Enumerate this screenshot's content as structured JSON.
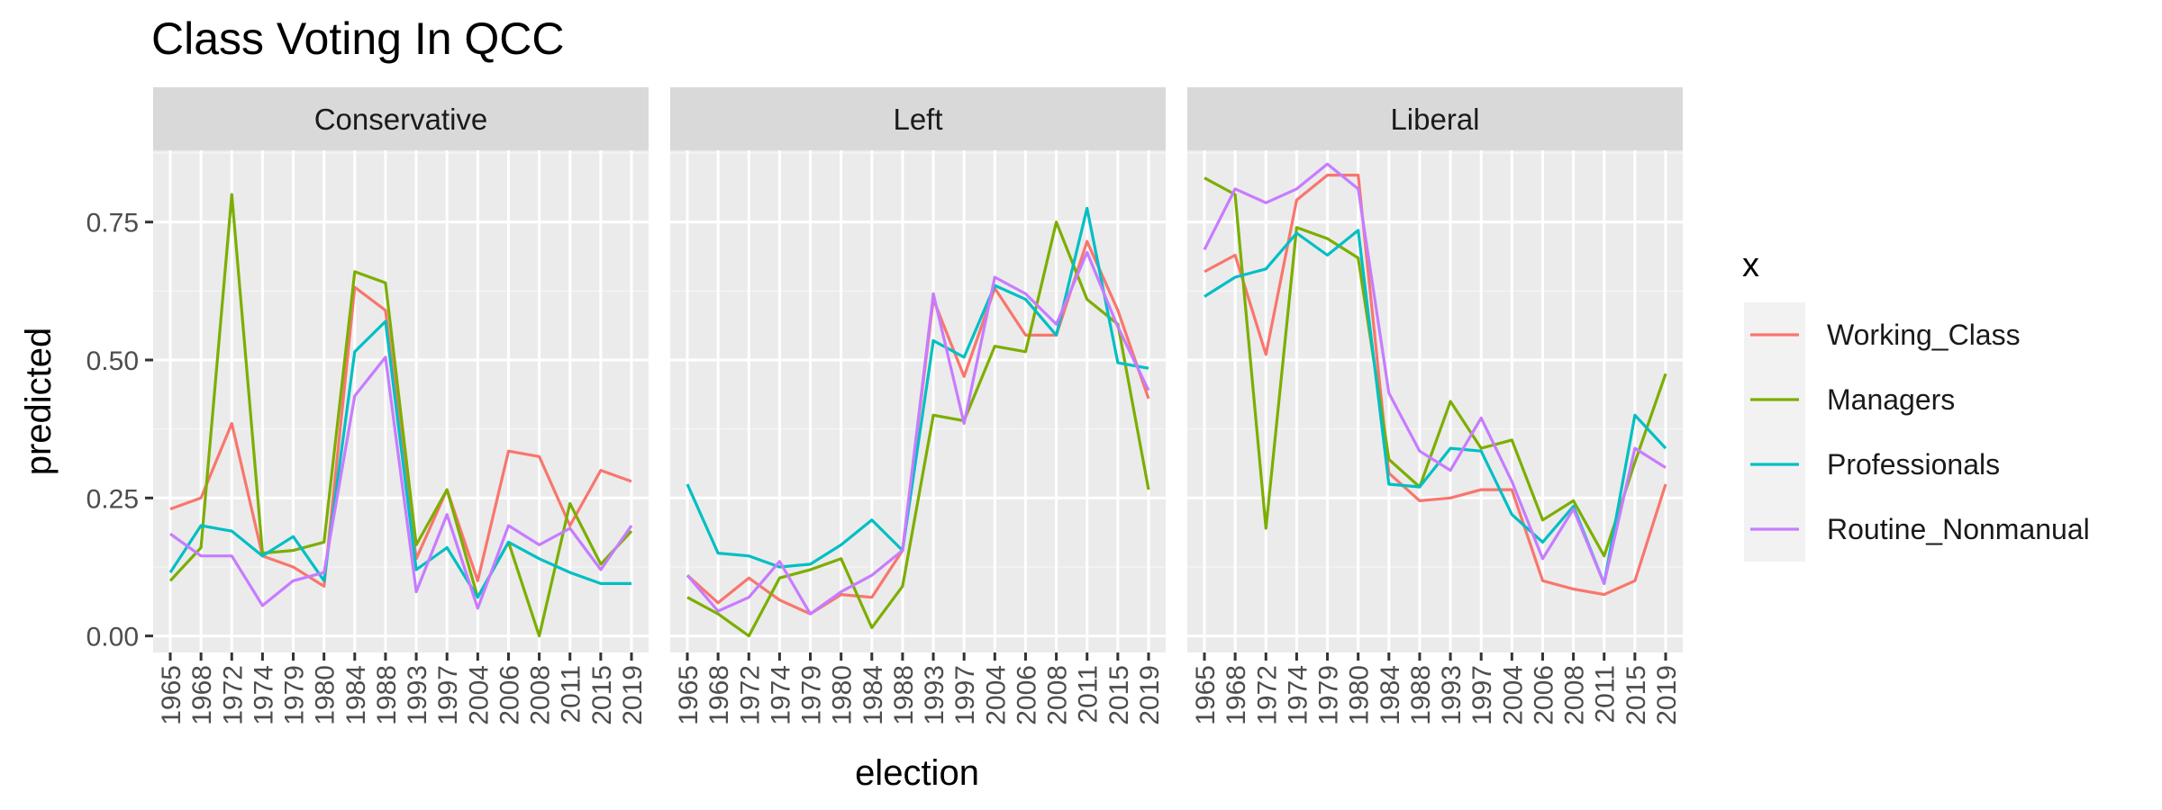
{
  "chart_data": {
    "type": "line",
    "title": "Class Voting In QCC",
    "xlabel": "election",
    "ylabel": "predicted",
    "ylim": [
      -0.03,
      0.88
    ],
    "y_ticks": [
      0,
      0.25,
      0.5,
      0.75
    ],
    "y_tick_labels": [
      "0.00",
      "0.25",
      "0.50",
      "0.75"
    ],
    "grid": true,
    "categories": [
      "1965",
      "1968",
      "1972",
      "1974",
      "1979",
      "1980",
      "1984",
      "1988",
      "1993",
      "1997",
      "2004",
      "2006",
      "2008",
      "2011",
      "2015",
      "2019"
    ],
    "legend": {
      "title": "x",
      "position": "right",
      "entries": [
        {
          "name": "Working_Class",
          "color": "#F8766D"
        },
        {
          "name": "Managers",
          "color": "#7CAE00"
        },
        {
          "name": "Professionals",
          "color": "#00BFC4"
        },
        {
          "name": "Routine_Nonmanual",
          "color": "#C77CFF"
        }
      ]
    },
    "panels": [
      {
        "label": "Conservative",
        "series": [
          {
            "name": "Working_Class",
            "values": [
              0.23,
              0.25,
              0.385,
              0.145,
              0.125,
              0.09,
              0.632,
              0.59,
              0.14,
              0.265,
              0.1,
              0.335,
              0.325,
              0.2,
              0.3,
              0.28
            ]
          },
          {
            "name": "Managers",
            "values": [
              0.1,
              0.16,
              0.8,
              0.15,
              0.155,
              0.17,
              0.66,
              0.64,
              0.165,
              0.265,
              0.07,
              0.17,
              0.0,
              0.24,
              0.13,
              0.19
            ]
          },
          {
            "name": "Professionals",
            "values": [
              0.115,
              0.2,
              0.19,
              0.145,
              0.18,
              0.1,
              0.515,
              0.57,
              0.12,
              0.16,
              0.07,
              0.17,
              0.14,
              0.115,
              0.095,
              0.095
            ]
          },
          {
            "name": "Routine_Nonmanual",
            "values": [
              0.185,
              0.145,
              0.145,
              0.055,
              0.1,
              0.115,
              0.435,
              0.505,
              0.08,
              0.22,
              0.05,
              0.2,
              0.165,
              0.195,
              0.12,
              0.2
            ]
          }
        ]
      },
      {
        "label": "Left",
        "series": [
          {
            "name": "Working_Class",
            "values": [
              0.11,
              0.06,
              0.105,
              0.065,
              0.04,
              0.075,
              0.07,
              0.155,
              0.61,
              0.47,
              0.63,
              0.545,
              0.545,
              0.715,
              0.59,
              0.43
            ]
          },
          {
            "name": "Managers",
            "values": [
              0.07,
              0.04,
              0.0,
              0.105,
              0.12,
              0.14,
              0.015,
              0.09,
              0.4,
              0.39,
              0.525,
              0.515,
              0.75,
              0.61,
              0.565,
              0.265
            ]
          },
          {
            "name": "Professionals",
            "values": [
              0.275,
              0.15,
              0.145,
              0.125,
              0.13,
              0.165,
              0.21,
              0.155,
              0.535,
              0.505,
              0.635,
              0.61,
              0.545,
              0.775,
              0.495,
              0.485
            ]
          },
          {
            "name": "Routine_Nonmanual",
            "values": [
              0.11,
              0.045,
              0.07,
              0.135,
              0.04,
              0.08,
              0.11,
              0.155,
              0.62,
              0.385,
              0.65,
              0.62,
              0.565,
              0.695,
              0.56,
              0.445
            ]
          }
        ]
      },
      {
        "label": "Liberal",
        "series": [
          {
            "name": "Working_Class",
            "values": [
              0.66,
              0.69,
              0.51,
              0.79,
              0.835,
              0.835,
              0.295,
              0.245,
              0.25,
              0.265,
              0.265,
              0.1,
              0.085,
              0.075,
              0.1,
              0.275
            ]
          },
          {
            "name": "Managers",
            "values": [
              0.83,
              0.8,
              0.195,
              0.74,
              0.72,
              0.685,
              0.32,
              0.27,
              0.425,
              0.34,
              0.355,
              0.21,
              0.245,
              0.145,
              0.315,
              0.475
            ]
          },
          {
            "name": "Professionals",
            "values": [
              0.615,
              0.65,
              0.665,
              0.73,
              0.69,
              0.735,
              0.275,
              0.27,
              0.34,
              0.335,
              0.22,
              0.17,
              0.235,
              0.095,
              0.4,
              0.34
            ]
          },
          {
            "name": "Routine_Nonmanual",
            "values": [
              0.7,
              0.81,
              0.785,
              0.81,
              0.855,
              0.81,
              0.44,
              0.335,
              0.3,
              0.395,
              0.28,
              0.14,
              0.23,
              0.095,
              0.34,
              0.305
            ]
          }
        ]
      }
    ]
  }
}
